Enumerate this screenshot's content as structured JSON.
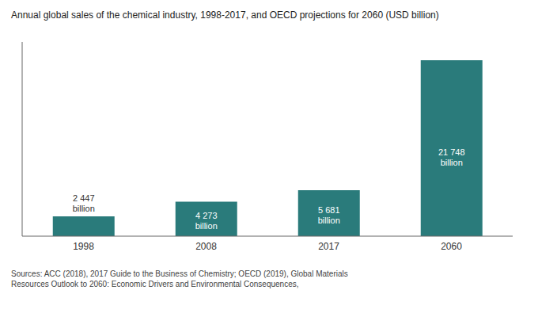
{
  "chart_data": {
    "type": "bar",
    "title": "Annual global sales of the chemical industry, 1998-2017, and OECD projections for 2060 (USD billion)",
    "categories": [
      "1998",
      "2008",
      "2017",
      "2060"
    ],
    "values": [
      2447,
      4273,
      5681,
      21748
    ],
    "value_labels": [
      "2 447\nbillion",
      "4 273\nbillion",
      "5 681\nbillion",
      "21 748\nbillion"
    ],
    "data_labels": true,
    "color": "#2a7b7b",
    "ylim": [
      0,
      24000
    ],
    "tick_labels": "x",
    "grid": false,
    "annotations": [
      "Sources: ACC (2018), 2017 Guide to the Business of Chemistry; OECD (2019), Global Materials\nResources Outlook to 2060: Economic Drivers and Environmental Consequences,"
    ]
  }
}
